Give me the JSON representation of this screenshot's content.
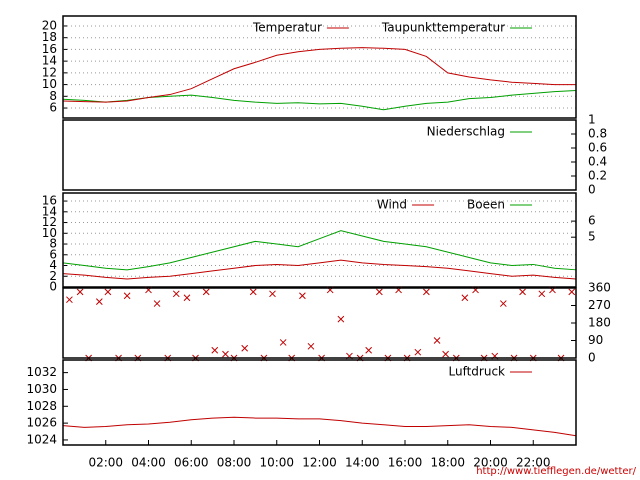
{
  "chart_data": [
    {
      "type": "line",
      "xlim": [
        0,
        24
      ],
      "ylim": [
        4.3,
        21.7
      ],
      "yticks": [
        6,
        8,
        10,
        12,
        14,
        16,
        18,
        20
      ],
      "grid": true,
      "x": [
        0,
        1,
        2,
        3,
        4,
        5,
        6,
        7,
        8,
        9,
        10,
        11,
        12,
        13,
        14,
        15,
        16,
        17,
        18,
        19,
        20,
        21,
        22,
        23,
        24
      ],
      "series": [
        {
          "name": "Temperatur",
          "color": "#c00000",
          "values": [
            7.2,
            7.1,
            7.0,
            7.2,
            7.8,
            8.3,
            9.3,
            11,
            12.7,
            13.8,
            15,
            15.6,
            16,
            16.2,
            16.3,
            16.2,
            16,
            14.8,
            12,
            11.3,
            10.8,
            10.4,
            10.2,
            10,
            10
          ]
        },
        {
          "name": "Taupunkttemperatur",
          "color": "#00a000",
          "values": [
            7.5,
            7.3,
            7.0,
            7.3,
            7.8,
            8.0,
            8.2,
            7.8,
            7.3,
            7.0,
            6.8,
            6.9,
            6.7,
            6.8,
            6.3,
            5.7,
            6.3,
            6.8,
            7.0,
            7.6,
            7.8,
            8.2,
            8.5,
            8.8,
            9.0
          ]
        }
      ]
    },
    {
      "type": "line",
      "xlim": [
        0,
        24
      ],
      "y2lim": [
        0,
        1
      ],
      "y2ticks": [
        0,
        0.2,
        0.4,
        0.6,
        0.8,
        1
      ],
      "grid": false,
      "x": [
        0,
        1,
        2,
        3,
        4,
        5,
        6,
        7,
        8,
        9,
        10,
        11,
        12,
        13,
        14,
        15,
        16,
        17,
        18,
        19,
        20,
        21,
        22,
        23,
        24
      ],
      "series": [
        {
          "name": "Niederschlag",
          "color": "#00a000",
          "axis": "y2",
          "values": [
            0,
            0,
            0,
            0,
            0,
            0,
            0,
            0,
            0,
            0,
            0,
            0,
            0,
            0,
            0,
            0,
            0,
            0,
            0,
            0,
            0,
            0,
            0,
            0,
            0
          ]
        }
      ]
    },
    {
      "type": "line",
      "xlim": [
        0,
        24
      ],
      "ylim": [
        0,
        17.5
      ],
      "yticks": [
        0,
        2,
        4,
        6,
        8,
        10,
        12,
        14,
        16
      ],
      "y2lim": [
        1.9,
        7.75
      ],
      "y2ticks": [
        5,
        6
      ],
      "grid": true,
      "x": [
        0,
        1,
        2,
        3,
        4,
        5,
        6,
        7,
        8,
        9,
        10,
        11,
        12,
        13,
        14,
        15,
        16,
        17,
        18,
        19,
        20,
        21,
        22,
        23,
        24
      ],
      "series": [
        {
          "name": "Wind",
          "color": "#c00000",
          "values": [
            2.5,
            2.2,
            1.8,
            1.5,
            1.8,
            2.0,
            2.5,
            3.0,
            3.5,
            4.0,
            4.2,
            4.0,
            4.5,
            5.0,
            4.5,
            4.2,
            4.0,
            3.8,
            3.5,
            3.0,
            2.5,
            2.0,
            2.2,
            1.8,
            1.5
          ]
        },
        {
          "name": "Boeen",
          "color": "#00a000",
          "values": [
            4.5,
            4.0,
            3.5,
            3.2,
            3.8,
            4.5,
            5.5,
            6.5,
            7.5,
            8.5,
            8.0,
            7.5,
            9.0,
            10.5,
            9.5,
            8.5,
            8.0,
            7.5,
            6.5,
            5.5,
            4.5,
            4.0,
            4.2,
            3.5,
            3.2
          ]
        }
      ]
    },
    {
      "type": "scatter",
      "xlim": [
        0,
        24
      ],
      "y2lim": [
        0,
        360
      ],
      "y2ticks": [
        0,
        90,
        180,
        270,
        360
      ],
      "grid": false,
      "color": "#c00000",
      "x": [
        0.3,
        0.8,
        1.2,
        1.7,
        2.1,
        2.6,
        3.0,
        3.5,
        4.0,
        4.4,
        4.9,
        5.3,
        5.8,
        6.2,
        6.7,
        7.1,
        7.6,
        8.0,
        8.5,
        8.9,
        9.4,
        9.8,
        10.3,
        10.7,
        11.2,
        11.6,
        12.1,
        12.5,
        13.0,
        13.4,
        13.9,
        14.3,
        14.8,
        15.2,
        15.7,
        16.1,
        16.6,
        17.0,
        17.5,
        17.9,
        18.4,
        18.8,
        19.3,
        19.7,
        20.2,
        20.6,
        21.1,
        21.5,
        22.0,
        22.4,
        22.9,
        23.3,
        23.8
      ],
      "values": [
        300,
        340,
        0,
        290,
        340,
        0,
        320,
        0,
        350,
        280,
        0,
        330,
        310,
        0,
        340,
        40,
        20,
        0,
        50,
        340,
        0,
        330,
        80,
        0,
        320,
        60,
        0,
        350,
        200,
        10,
        0,
        40,
        340,
        0,
        350,
        0,
        30,
        340,
        90,
        20,
        0,
        310,
        350,
        0,
        10,
        280,
        0,
        340,
        0,
        330,
        350,
        0,
        340
      ]
    },
    {
      "type": "line",
      "xlim": [
        0,
        24
      ],
      "ylim": [
        1023.4,
        1033.5
      ],
      "yticks": [
        1024,
        1026,
        1028,
        1030,
        1032
      ],
      "grid": false,
      "xticks": [
        {
          "value": 2,
          "label": "02:00"
        },
        {
          "value": 4,
          "label": "04:00"
        },
        {
          "value": 6,
          "label": "06:00"
        },
        {
          "value": 8,
          "label": "08:00"
        },
        {
          "value": 10,
          "label": "10:00"
        },
        {
          "value": 12,
          "label": "12:00"
        },
        {
          "value": 14,
          "label": "14:00"
        },
        {
          "value": 16,
          "label": "16:00"
        },
        {
          "value": 18,
          "label": "18:00"
        },
        {
          "value": 20,
          "label": "20:00"
        },
        {
          "value": 22,
          "label": "22:00"
        }
      ],
      "x": [
        0,
        1,
        2,
        3,
        4,
        5,
        6,
        7,
        8,
        9,
        10,
        11,
        12,
        13,
        14,
        15,
        16,
        17,
        18,
        19,
        20,
        21,
        22,
        23,
        24
      ],
      "series": [
        {
          "name": "Luftdruck",
          "color": "#c00000",
          "values": [
            1025.7,
            1025.5,
            1025.6,
            1025.8,
            1025.9,
            1026.1,
            1026.4,
            1026.6,
            1026.7,
            1026.6,
            1026.6,
            1026.5,
            1026.5,
            1026.3,
            1026.0,
            1025.8,
            1025.6,
            1025.6,
            1025.7,
            1025.8,
            1025.6,
            1025.5,
            1025.2,
            1024.9,
            1024.5
          ]
        }
      ]
    }
  ],
  "footer": "http://www.tiefflegen.de/wetter/"
}
